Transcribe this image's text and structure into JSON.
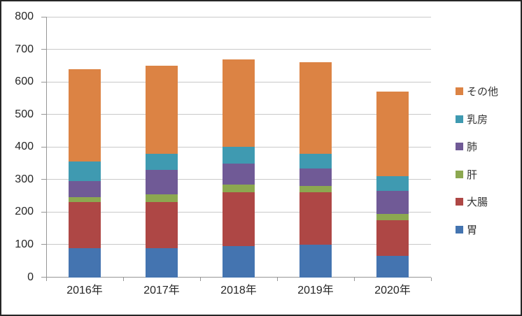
{
  "chart_data": {
    "type": "bar",
    "variant": "stacked-column",
    "title": "",
    "xlabel": "",
    "ylabel": "",
    "categories": [
      "2016年",
      "2017年",
      "2018年",
      "2019年",
      "2020年"
    ],
    "series": [
      {
        "name": "胃",
        "color": "#4474B0",
        "values": [
          90,
          90,
          95,
          100,
          65
        ]
      },
      {
        "name": "大腸",
        "color": "#AE4745",
        "values": [
          140,
          140,
          165,
          160,
          110
        ]
      },
      {
        "name": "肝",
        "color": "#8CA850",
        "values": [
          15,
          25,
          25,
          20,
          20
        ]
      },
      {
        "name": "肺",
        "color": "#705A96",
        "values": [
          50,
          75,
          65,
          55,
          70
        ]
      },
      {
        "name": "乳房",
        "color": "#3F9AB1",
        "values": [
          60,
          50,
          50,
          45,
          45
        ]
      },
      {
        "name": "その他",
        "color": "#DC8344",
        "values": [
          285,
          270,
          270,
          280,
          260
        ]
      }
    ],
    "totals": [
      640,
      650,
      670,
      660,
      570
    ],
    "ylim": [
      0,
      800
    ],
    "ytick_step": 100,
    "ytick_labels": [
      "0",
      "100",
      "200",
      "300",
      "400",
      "500",
      "600",
      "700",
      "800"
    ],
    "grid": true,
    "legend": {
      "position": "right",
      "order_top_to_bottom": [
        "その他",
        "乳房",
        "肺",
        "肝",
        "大腸",
        "胃"
      ]
    }
  },
  "colors": {
    "background": "#FFFFFF",
    "border": "#262626",
    "gridline": "#C9C9C9",
    "axis": "#969696",
    "text": "#262626"
  }
}
